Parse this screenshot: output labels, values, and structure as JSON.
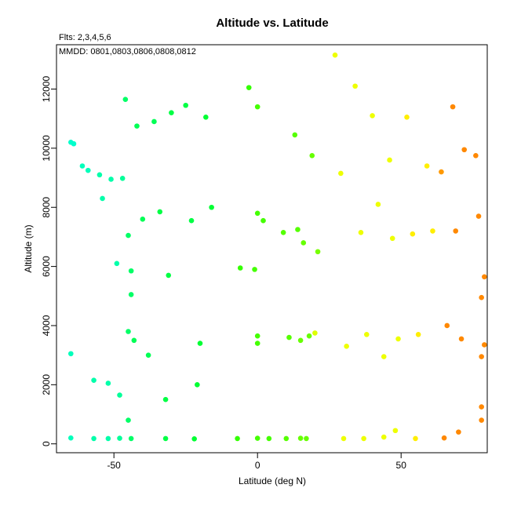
{
  "chart_data": {
    "type": "scatter",
    "title": "Altitude vs. Latitude",
    "subtitle": "Flts: 2,3,4,5,6",
    "annotation": "MMDD: 0801,0803,0806,0808,0812",
    "xlabel": "Latitude (deg N)",
    "ylabel": "Altitude (m)",
    "xlim": [
      -70,
      80
    ],
    "ylim": [
      -300,
      13500
    ],
    "xticks": [
      -50,
      0,
      50
    ],
    "xtick_labels": [
      "-50",
      "0",
      "50"
    ],
    "yticks": [
      0,
      2000,
      4000,
      6000,
      8000,
      10000,
      12000
    ],
    "ytick_labels": [
      "0",
      "2000",
      "4000",
      "6000",
      "8000",
      "10000",
      "12000"
    ],
    "grid": false,
    "points": [
      {
        "x": -65,
        "y": 10200,
        "color": "#00ffcc"
      },
      {
        "x": -64,
        "y": 10150,
        "color": "#00ffcc"
      },
      {
        "x": -61,
        "y": 9400,
        "color": "#00ffbb"
      },
      {
        "x": -59,
        "y": 9250,
        "color": "#00ffbb"
      },
      {
        "x": -55,
        "y": 9100,
        "color": "#00ffaa"
      },
      {
        "x": -51,
        "y": 8950,
        "color": "#00ffaa"
      },
      {
        "x": -47,
        "y": 8980,
        "color": "#00ff99"
      },
      {
        "x": -54,
        "y": 8300,
        "color": "#00ffaa"
      },
      {
        "x": -49,
        "y": 6100,
        "color": "#00ffaa"
      },
      {
        "x": -65,
        "y": 3050,
        "color": "#00ffbb"
      },
      {
        "x": -57,
        "y": 2150,
        "color": "#00ffaa"
      },
      {
        "x": -52,
        "y": 2050,
        "color": "#00ffaa"
      },
      {
        "x": -48,
        "y": 1650,
        "color": "#00ff99"
      },
      {
        "x": -65,
        "y": 200,
        "color": "#00ffbb"
      },
      {
        "x": -57,
        "y": 180,
        "color": "#00ffaa"
      },
      {
        "x": -52,
        "y": 180,
        "color": "#00ffaa"
      },
      {
        "x": -48,
        "y": 190,
        "color": "#00ff99"
      },
      {
        "x": -46,
        "y": 11650,
        "color": "#00ff66"
      },
      {
        "x": -42,
        "y": 10750,
        "color": "#00ff55"
      },
      {
        "x": -36,
        "y": 10900,
        "color": "#00ff55"
      },
      {
        "x": -30,
        "y": 11200,
        "color": "#00ff44"
      },
      {
        "x": -25,
        "y": 11450,
        "color": "#00ff44"
      },
      {
        "x": -18,
        "y": 11050,
        "color": "#00ff33"
      },
      {
        "x": -40,
        "y": 7600,
        "color": "#00ff55"
      },
      {
        "x": -34,
        "y": 7850,
        "color": "#00ff44"
      },
      {
        "x": -23,
        "y": 7550,
        "color": "#00ff44"
      },
      {
        "x": -16,
        "y": 8000,
        "color": "#00ff33"
      },
      {
        "x": -45,
        "y": 7050,
        "color": "#00ff66"
      },
      {
        "x": -44,
        "y": 5850,
        "color": "#00ff66"
      },
      {
        "x": -31,
        "y": 5700,
        "color": "#00ff44"
      },
      {
        "x": -44,
        "y": 5050,
        "color": "#00ff66"
      },
      {
        "x": -45,
        "y": 3800,
        "color": "#00ff66"
      },
      {
        "x": -43,
        "y": 3500,
        "color": "#00ff55"
      },
      {
        "x": -38,
        "y": 3000,
        "color": "#00ff55"
      },
      {
        "x": -20,
        "y": 3400,
        "color": "#00ff33"
      },
      {
        "x": -21,
        "y": 2000,
        "color": "#00ff33"
      },
      {
        "x": -32,
        "y": 1500,
        "color": "#00ff44"
      },
      {
        "x": -45,
        "y": 800,
        "color": "#00ff66"
      },
      {
        "x": -44,
        "y": 180,
        "color": "#00ff66"
      },
      {
        "x": -32,
        "y": 180,
        "color": "#00ff44"
      },
      {
        "x": -22,
        "y": 170,
        "color": "#00ff33"
      },
      {
        "x": -3,
        "y": 12050,
        "color": "#33ff00"
      },
      {
        "x": 0,
        "y": 11400,
        "color": "#44ff00"
      },
      {
        "x": 13,
        "y": 10450,
        "color": "#55ff00"
      },
      {
        "x": 19,
        "y": 9750,
        "color": "#66ff00"
      },
      {
        "x": 0,
        "y": 7800,
        "color": "#44ff00"
      },
      {
        "x": 2,
        "y": 7550,
        "color": "#44ff00"
      },
      {
        "x": 9,
        "y": 7150,
        "color": "#55ff00"
      },
      {
        "x": 14,
        "y": 7250,
        "color": "#55ff00"
      },
      {
        "x": 16,
        "y": 6800,
        "color": "#66ff00"
      },
      {
        "x": 21,
        "y": 6500,
        "color": "#77ff00"
      },
      {
        "x": -6,
        "y": 5950,
        "color": "#33ff00"
      },
      {
        "x": -1,
        "y": 5900,
        "color": "#44ff00"
      },
      {
        "x": 0,
        "y": 3650,
        "color": "#44ff00"
      },
      {
        "x": 0,
        "y": 3400,
        "color": "#44ff00"
      },
      {
        "x": 11,
        "y": 3600,
        "color": "#55ff00"
      },
      {
        "x": 15,
        "y": 3500,
        "color": "#66ff00"
      },
      {
        "x": 18,
        "y": 3650,
        "color": "#66ff00"
      },
      {
        "x": -7,
        "y": 180,
        "color": "#33ff00"
      },
      {
        "x": 0,
        "y": 190,
        "color": "#44ff00"
      },
      {
        "x": 4,
        "y": 180,
        "color": "#44ff00"
      },
      {
        "x": 10,
        "y": 180,
        "color": "#55ff00"
      },
      {
        "x": 15,
        "y": 190,
        "color": "#66ff00"
      },
      {
        "x": 17,
        "y": 180,
        "color": "#66ff00"
      },
      {
        "x": 27,
        "y": 13150,
        "color": "#eeff00"
      },
      {
        "x": 34,
        "y": 12100,
        "color": "#eeff00"
      },
      {
        "x": 40,
        "y": 11100,
        "color": "#eeff00"
      },
      {
        "x": 52,
        "y": 11050,
        "color": "#ffee00"
      },
      {
        "x": 46,
        "y": 9600,
        "color": "#eeff00"
      },
      {
        "x": 59,
        "y": 9400,
        "color": "#ffee00"
      },
      {
        "x": 29,
        "y": 9150,
        "color": "#eeff00"
      },
      {
        "x": 42,
        "y": 8100,
        "color": "#eeff00"
      },
      {
        "x": 36,
        "y": 7150,
        "color": "#eeff00"
      },
      {
        "x": 47,
        "y": 6950,
        "color": "#eeff00"
      },
      {
        "x": 54,
        "y": 7100,
        "color": "#ffee00"
      },
      {
        "x": 61,
        "y": 7200,
        "color": "#ffee00"
      },
      {
        "x": 20,
        "y": 3750,
        "color": "#ddff00"
      },
      {
        "x": 31,
        "y": 3300,
        "color": "#eeff00"
      },
      {
        "x": 38,
        "y": 3700,
        "color": "#eeff00"
      },
      {
        "x": 49,
        "y": 3550,
        "color": "#eeff00"
      },
      {
        "x": 56,
        "y": 3700,
        "color": "#ffee00"
      },
      {
        "x": 44,
        "y": 2950,
        "color": "#eeff00"
      },
      {
        "x": 30,
        "y": 180,
        "color": "#eeff00"
      },
      {
        "x": 37,
        "y": 180,
        "color": "#eeff00"
      },
      {
        "x": 44,
        "y": 230,
        "color": "#eeff00"
      },
      {
        "x": 48,
        "y": 450,
        "color": "#eeff00"
      },
      {
        "x": 55,
        "y": 180,
        "color": "#ffee00"
      },
      {
        "x": 68,
        "y": 11400,
        "color": "#ff8800"
      },
      {
        "x": 72,
        "y": 9950,
        "color": "#ff8800"
      },
      {
        "x": 76,
        "y": 9750,
        "color": "#ff8800"
      },
      {
        "x": 64,
        "y": 9200,
        "color": "#ff9900"
      },
      {
        "x": 77,
        "y": 7700,
        "color": "#ff8800"
      },
      {
        "x": 69,
        "y": 7200,
        "color": "#ff8800"
      },
      {
        "x": 79,
        "y": 5650,
        "color": "#ff8800"
      },
      {
        "x": 78,
        "y": 4950,
        "color": "#ff8800"
      },
      {
        "x": 66,
        "y": 4000,
        "color": "#ff8800"
      },
      {
        "x": 71,
        "y": 3550,
        "color": "#ff8800"
      },
      {
        "x": 79,
        "y": 3350,
        "color": "#ff8800"
      },
      {
        "x": 78,
        "y": 2950,
        "color": "#ff8800"
      },
      {
        "x": 78,
        "y": 1250,
        "color": "#ff8800"
      },
      {
        "x": 78,
        "y": 800,
        "color": "#ff8800"
      },
      {
        "x": 70,
        "y": 400,
        "color": "#ff8800"
      },
      {
        "x": 65,
        "y": 200,
        "color": "#ff8800"
      }
    ]
  }
}
